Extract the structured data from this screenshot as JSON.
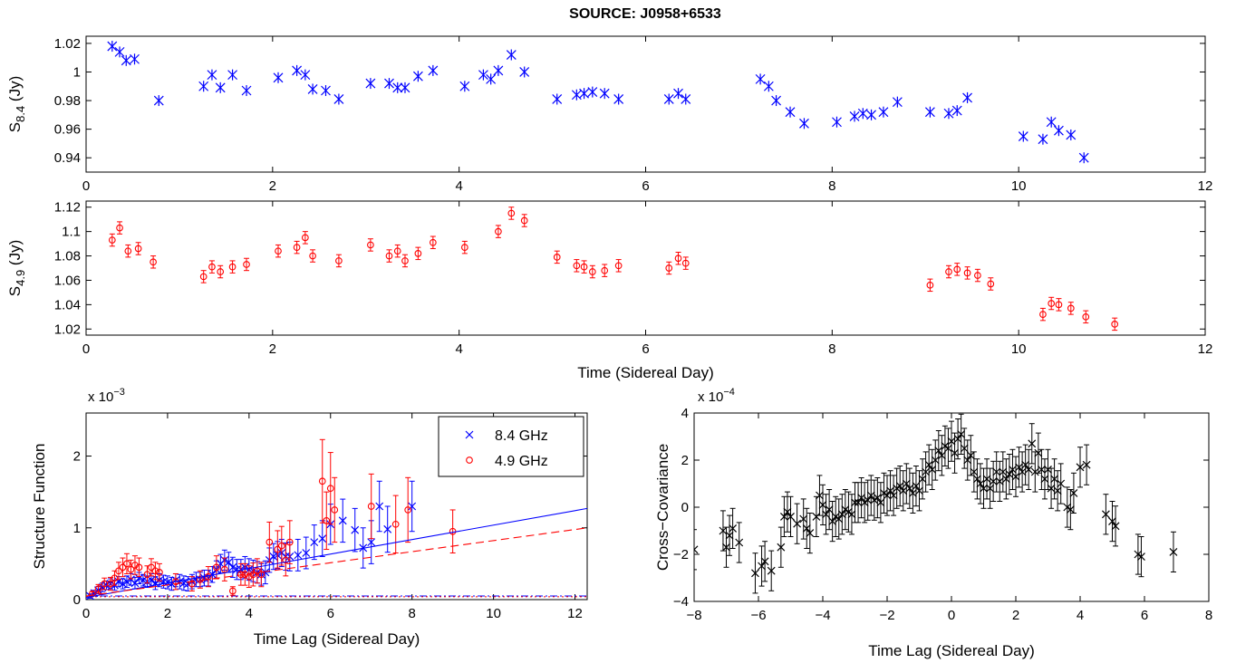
{
  "figure": {
    "title": "SOURCE: J0958+6533"
  },
  "chart_data": [
    {
      "id": "s84",
      "type": "scatter",
      "title": "SOURCE: J0958+6533",
      "xlabel": "",
      "ylabel_main": "S",
      "ylabel_sub": "8.4",
      "ylabel_unit": " (Jy)",
      "xlim": [
        0,
        12
      ],
      "ylim": [
        0.93,
        1.025
      ],
      "xticks": [
        0,
        2,
        4,
        6,
        8,
        10,
        12
      ],
      "yticks": [
        0.94,
        0.96,
        0.98,
        1,
        1.02
      ],
      "xtick_labels": [
        "0",
        "2",
        "4",
        "6",
        "8",
        "10",
        "12"
      ],
      "ytick_labels": [
        "0.94",
        "0.96",
        "0.98",
        "1",
        "1.02"
      ],
      "grid": false,
      "series": [
        {
          "marker": "asterisk",
          "color": "#0000ff",
          "x": [
            0.28,
            0.36,
            0.43,
            0.52,
            0.78,
            1.26,
            1.35,
            1.44,
            1.57,
            1.72,
            2.06,
            2.26,
            2.35,
            2.43,
            2.57,
            2.71,
            3.05,
            3.25,
            3.34,
            3.42,
            3.56,
            3.72,
            4.06,
            4.26,
            4.34,
            4.42,
            4.56,
            4.7,
            5.05,
            5.26,
            5.34,
            5.43,
            5.56,
            5.71,
            6.25,
            6.35,
            6.43,
            7.23,
            7.32,
            7.4,
            7.55,
            7.7,
            8.05,
            8.24,
            8.33,
            8.42,
            8.55,
            8.7,
            9.05,
            9.25,
            9.34,
            9.45,
            10.05,
            10.26,
            10.35,
            10.43,
            10.56,
            10.7
          ],
          "y": [
            1.018,
            1.014,
            1.008,
            1.009,
            0.98,
            0.99,
            0.998,
            0.989,
            0.998,
            0.987,
            0.996,
            1.001,
            0.998,
            0.988,
            0.987,
            0.981,
            0.992,
            0.992,
            0.989,
            0.989,
            0.997,
            1.001,
            0.99,
            0.998,
            0.995,
            1.001,
            1.012,
            1.0,
            0.981,
            0.984,
            0.985,
            0.986,
            0.985,
            0.981,
            0.981,
            0.985,
            0.981,
            0.995,
            0.99,
            0.98,
            0.972,
            0.964,
            0.965,
            0.969,
            0.971,
            0.97,
            0.972,
            0.979,
            0.972,
            0.971,
            0.973,
            0.982,
            0.955,
            0.953,
            0.965,
            0.959,
            0.956,
            0.94
          ]
        }
      ]
    },
    {
      "id": "s49",
      "type": "scatter",
      "xlabel": "Time (Sidereal Day)",
      "ylabel_main": "S",
      "ylabel_sub": "4.9",
      "ylabel_unit": " (Jy)",
      "xlim": [
        0,
        12
      ],
      "ylim": [
        1.015,
        1.125
      ],
      "xticks": [
        0,
        2,
        4,
        6,
        8,
        10,
        12
      ],
      "yticks": [
        1.02,
        1.04,
        1.06,
        1.08,
        1.1,
        1.12
      ],
      "xtick_labels": [
        "0",
        "2",
        "4",
        "6",
        "8",
        "10",
        "12"
      ],
      "ytick_labels": [
        "1.02",
        "1.04",
        "1.06",
        "1.08",
        "1.1",
        "1.12"
      ],
      "grid": false,
      "series": [
        {
          "marker": "circle",
          "color": "#ff0000",
          "x": [
            0.28,
            0.36,
            0.45,
            0.56,
            0.72,
            1.26,
            1.35,
            1.44,
            1.57,
            1.72,
            2.06,
            2.26,
            2.35,
            2.43,
            2.71,
            3.05,
            3.25,
            3.34,
            3.42,
            3.56,
            3.72,
            4.06,
            4.42,
            4.56,
            4.7,
            5.05,
            5.26,
            5.34,
            5.43,
            5.56,
            5.71,
            6.25,
            6.35,
            6.43,
            9.05,
            9.25,
            9.34,
            9.45,
            9.56,
            9.7,
            10.26,
            10.35,
            10.43,
            10.56,
            10.72,
            11.03
          ],
          "y": [
            1.093,
            1.103,
            1.084,
            1.086,
            1.075,
            1.063,
            1.071,
            1.067,
            1.071,
            1.073,
            1.084,
            1.087,
            1.095,
            1.08,
            1.076,
            1.089,
            1.08,
            1.084,
            1.076,
            1.082,
            1.091,
            1.087,
            1.1,
            1.115,
            1.109,
            1.079,
            1.072,
            1.071,
            1.067,
            1.068,
            1.072,
            1.07,
            1.078,
            1.074,
            1.056,
            1.067,
            1.069,
            1.066,
            1.064,
            1.057,
            1.032,
            1.041,
            1.04,
            1.037,
            1.03,
            1.024
          ],
          "yerr": 0.005
        }
      ]
    },
    {
      "id": "sf",
      "type": "scatter",
      "xlabel": "Time Lag (Sidereal Day)",
      "ylabel": "Structure Function",
      "exponent_base": "x 10",
      "exponent_power": "−3",
      "xlim": [
        0,
        12.3
      ],
      "ylim": [
        0,
        2.6
      ],
      "xticks": [
        0,
        2,
        4,
        6,
        8,
        10,
        12
      ],
      "yticks": [
        0,
        1,
        2
      ],
      "xtick_labels": [
        "0",
        "2",
        "4",
        "6",
        "8",
        "10",
        "12"
      ],
      "ytick_labels": [
        "0",
        "1",
        "2"
      ],
      "grid": false,
      "legend": {
        "position": "top-right"
      },
      "series": [
        {
          "name": "8.4 GHz",
          "marker": "x",
          "color": "#0000ff",
          "x": [
            0.1,
            0.2,
            0.3,
            0.4,
            0.5,
            0.6,
            0.7,
            0.8,
            0.9,
            1.0,
            1.1,
            1.2,
            1.3,
            1.4,
            1.5,
            1.6,
            1.7,
            1.8,
            1.9,
            2.0,
            2.1,
            2.2,
            2.3,
            2.4,
            2.5,
            2.6,
            2.7,
            2.8,
            2.9,
            3.0,
            3.1,
            3.2,
            3.3,
            3.4,
            3.5,
            3.6,
            3.7,
            3.8,
            3.9,
            4.0,
            4.1,
            4.2,
            4.3,
            4.4,
            4.5,
            4.6,
            4.7,
            4.8,
            4.9,
            5.0,
            5.2,
            5.4,
            5.6,
            5.8,
            6.0,
            6.3,
            6.6,
            6.8,
            7.0,
            7.2,
            7.4,
            8.0
          ],
          "y": [
            0.05,
            0.09,
            0.13,
            0.17,
            0.2,
            0.22,
            0.2,
            0.25,
            0.22,
            0.25,
            0.28,
            0.23,
            0.3,
            0.27,
            0.25,
            0.27,
            0.23,
            0.27,
            0.25,
            0.24,
            0.22,
            0.27,
            0.25,
            0.23,
            0.22,
            0.25,
            0.28,
            0.28,
            0.3,
            0.3,
            0.35,
            0.42,
            0.5,
            0.55,
            0.52,
            0.45,
            0.42,
            0.42,
            0.45,
            0.42,
            0.4,
            0.38,
            0.35,
            0.38,
            0.55,
            0.6,
            0.62,
            0.65,
            0.6,
            0.6,
            0.62,
            0.65,
            0.8,
            0.85,
            1.05,
            1.1,
            0.97,
            0.72,
            0.8,
            1.3,
            0.98,
            1.3
          ],
          "yerr": [
            0.03,
            0.04,
            0.05,
            0.06,
            0.06,
            0.07,
            0.07,
            0.07,
            0.07,
            0.08,
            0.08,
            0.08,
            0.08,
            0.08,
            0.08,
            0.09,
            0.09,
            0.09,
            0.09,
            0.09,
            0.09,
            0.09,
            0.1,
            0.1,
            0.1,
            0.1,
            0.1,
            0.1,
            0.11,
            0.11,
            0.11,
            0.12,
            0.13,
            0.14,
            0.14,
            0.14,
            0.14,
            0.14,
            0.15,
            0.15,
            0.15,
            0.15,
            0.15,
            0.16,
            0.17,
            0.18,
            0.19,
            0.19,
            0.19,
            0.2,
            0.22,
            0.22,
            0.24,
            0.25,
            0.28,
            0.3,
            0.3,
            0.28,
            0.3,
            0.35,
            0.32,
            0.35
          ]
        },
        {
          "name": "4.9 GHz",
          "marker": "circle",
          "color": "#ff0000",
          "x": [
            0.15,
            0.3,
            0.45,
            0.6,
            0.7,
            0.8,
            0.9,
            1.0,
            1.1,
            1.2,
            1.3,
            1.5,
            1.6,
            1.7,
            1.8,
            2.2,
            2.6,
            2.8,
            3.0,
            3.2,
            3.4,
            3.6,
            3.8,
            3.9,
            4.0,
            4.1,
            4.2,
            4.3,
            4.5,
            4.7,
            4.8,
            4.9,
            5.0,
            5.8,
            5.9,
            6.0,
            6.1,
            7.0,
            7.6,
            7.9,
            9.0
          ],
          "y": [
            0.08,
            0.15,
            0.22,
            0.22,
            0.3,
            0.4,
            0.45,
            0.5,
            0.42,
            0.48,
            0.45,
            0.35,
            0.45,
            0.4,
            0.38,
            0.25,
            0.22,
            0.28,
            0.32,
            0.45,
            0.42,
            0.12,
            0.35,
            0.35,
            0.32,
            0.35,
            0.4,
            0.35,
            0.8,
            0.7,
            0.75,
            0.55,
            0.8,
            1.65,
            1.1,
            1.55,
            1.25,
            1.3,
            1.05,
            1.25,
            0.95
          ],
          "yerr": [
            0.03,
            0.06,
            0.08,
            0.09,
            0.1,
            0.12,
            0.13,
            0.14,
            0.13,
            0.13,
            0.13,
            0.12,
            0.12,
            0.12,
            0.12,
            0.11,
            0.1,
            0.12,
            0.14,
            0.16,
            0.16,
            0.06,
            0.15,
            0.15,
            0.15,
            0.16,
            0.17,
            0.17,
            0.28,
            0.26,
            0.27,
            0.22,
            0.3,
            0.58,
            0.4,
            0.5,
            0.45,
            0.45,
            0.4,
            0.45,
            0.3
          ]
        }
      ],
      "fits": [
        {
          "color": "#0000ff",
          "style": "solid",
          "x": [
            0,
            12.3
          ],
          "y": [
            0.03,
            1.27
          ]
        },
        {
          "color": "#ff0000",
          "style": "dashed",
          "x": [
            0,
            12.3
          ],
          "y": [
            0.05,
            1.0
          ]
        }
      ],
      "noise_levels": [
        {
          "color": "#0000ff",
          "style": "dashdot",
          "y": 0.05
        },
        {
          "color": "#ff0000",
          "style": "dotted",
          "y": 0.04
        }
      ]
    },
    {
      "id": "ccf",
      "type": "scatter",
      "xlabel": "Time Lag (Sidereal Day)",
      "ylabel": "Cross−Covariance",
      "exponent_base": "x 10",
      "exponent_power": "−4",
      "xlim": [
        -8,
        8
      ],
      "ylim": [
        -4,
        4
      ],
      "xticks": [
        -8,
        -6,
        -4,
        -2,
        0,
        2,
        4,
        6,
        8
      ],
      "yticks": [
        -4,
        -2,
        0,
        2,
        4
      ],
      "xtick_labels": [
        "−8",
        "−6",
        "−4",
        "−2",
        "0",
        "2",
        "4",
        "6",
        "8"
      ],
      "ytick_labels": [
        "−4",
        "−2",
        "0",
        "2",
        "4"
      ],
      "grid": false,
      "series": [
        {
          "marker": "x",
          "color": "#000000",
          "x": [
            -8.0,
            -7.1,
            -7.0,
            -6.9,
            -6.8,
            -6.6,
            -6.1,
            -5.9,
            -5.8,
            -5.6,
            -5.3,
            -5.2,
            -5.1,
            -5.0,
            -4.8,
            -4.6,
            -4.5,
            -4.4,
            -4.2,
            -4.1,
            -4.0,
            -3.9,
            -3.8,
            -3.7,
            -3.6,
            -3.5,
            -3.4,
            -3.3,
            -3.2,
            -3.1,
            -3.0,
            -2.9,
            -2.8,
            -2.7,
            -2.6,
            -2.5,
            -2.4,
            -2.3,
            -2.2,
            -2.1,
            -2.0,
            -1.9,
            -1.8,
            -1.7,
            -1.6,
            -1.5,
            -1.4,
            -1.3,
            -1.2,
            -1.1,
            -1.0,
            -0.9,
            -0.8,
            -0.7,
            -0.6,
            -0.5,
            -0.4,
            -0.3,
            -0.2,
            -0.1,
            0.0,
            0.1,
            0.2,
            0.3,
            0.4,
            0.5,
            0.6,
            0.7,
            0.8,
            0.9,
            1.0,
            1.1,
            1.2,
            1.3,
            1.4,
            1.5,
            1.6,
            1.7,
            1.8,
            1.9,
            2.0,
            2.1,
            2.2,
            2.3,
            2.4,
            2.5,
            2.6,
            2.7,
            2.8,
            2.9,
            3.0,
            3.1,
            3.2,
            3.3,
            3.4,
            3.6,
            3.7,
            3.8,
            4.0,
            4.2,
            4.8,
            5.0,
            5.1,
            5.8,
            5.9,
            6.9
          ],
          "y": [
            -1.8,
            -1.0,
            -1.7,
            -1.2,
            -0.9,
            -1.5,
            -2.8,
            -2.5,
            -2.3,
            -2.7,
            -1.7,
            -0.4,
            -0.2,
            -0.4,
            -0.7,
            -0.5,
            -0.9,
            -1.1,
            -0.4,
            0.5,
            0.1,
            -0.3,
            -0.1,
            -0.6,
            -0.4,
            -0.5,
            -0.3,
            -0.1,
            -0.2,
            -0.3,
            0.2,
            0.2,
            0.4,
            0.2,
            0.3,
            0.5,
            0.3,
            0.4,
            0.2,
            0.6,
            0.5,
            0.7,
            0.5,
            0.8,
            0.9,
            0.7,
            1.0,
            0.8,
            0.6,
            0.9,
            0.7,
            1.2,
            1.5,
            1.8,
            1.6,
            2.0,
            2.4,
            2.2,
            2.6,
            2.5,
            2.8,
            2.3,
            2.9,
            3.1,
            2.5,
            2.0,
            2.2,
            1.5,
            1.2,
            1.0,
            0.8,
            1.2,
            0.8,
            1.1,
            1.5,
            1.1,
            1.5,
            1.2,
            1.4,
            1.6,
            1.3,
            1.7,
            1.5,
            1.8,
            1.6,
            2.7,
            1.5,
            2.3,
            1.6,
            1.2,
            1.6,
            0.8,
            1.2,
            0.7,
            1.0,
            0.0,
            -0.1,
            0.6,
            1.7,
            1.8,
            -0.3,
            -0.6,
            -0.8,
            -2.0,
            -2.1,
            -1.9
          ],
          "yerr": 0.85
        }
      ]
    }
  ]
}
